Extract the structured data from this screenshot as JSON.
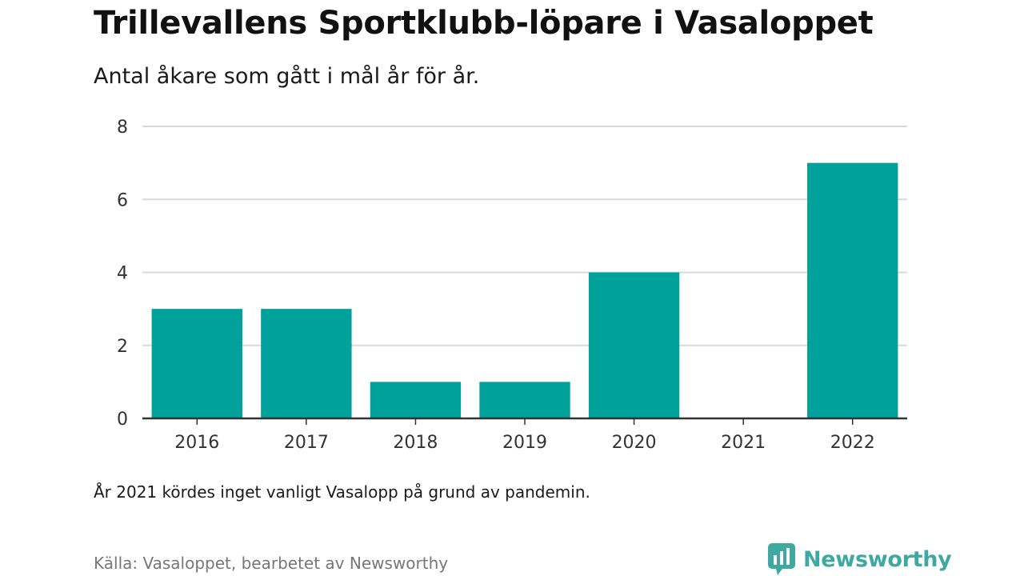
{
  "title": "Trillevallens Sportklubb-löpare i Vasaloppet",
  "subtitle": "Antal åkare som gått i mål år för år.",
  "note": "År 2021 kördes inget vanligt Vasalopp på grund av pandemin.",
  "source": "Källa: Vasaloppet, bearbetet av Newsworthy",
  "logo": {
    "text": "Newsworthy",
    "icon": "newsworthy-chart-icon"
  },
  "colors": {
    "bar": "#00a19a",
    "grid": "#d9d9d9",
    "axis": "#333333",
    "logo": "#3ea9a0"
  },
  "chart_data": {
    "type": "bar",
    "categories": [
      "2016",
      "2017",
      "2018",
      "2019",
      "2020",
      "2021",
      "2022"
    ],
    "values": [
      3,
      3,
      1,
      1,
      4,
      0,
      7
    ],
    "title": "Trillevallens Sportklubb-löpare i Vasaloppet",
    "subtitle": "Antal åkare som gått i mål år för år.",
    "xlabel": "",
    "ylabel": "",
    "ylim": [
      0,
      8
    ],
    "yticks": [
      0,
      2,
      4,
      6,
      8
    ],
    "grid": true,
    "legend": "none"
  }
}
